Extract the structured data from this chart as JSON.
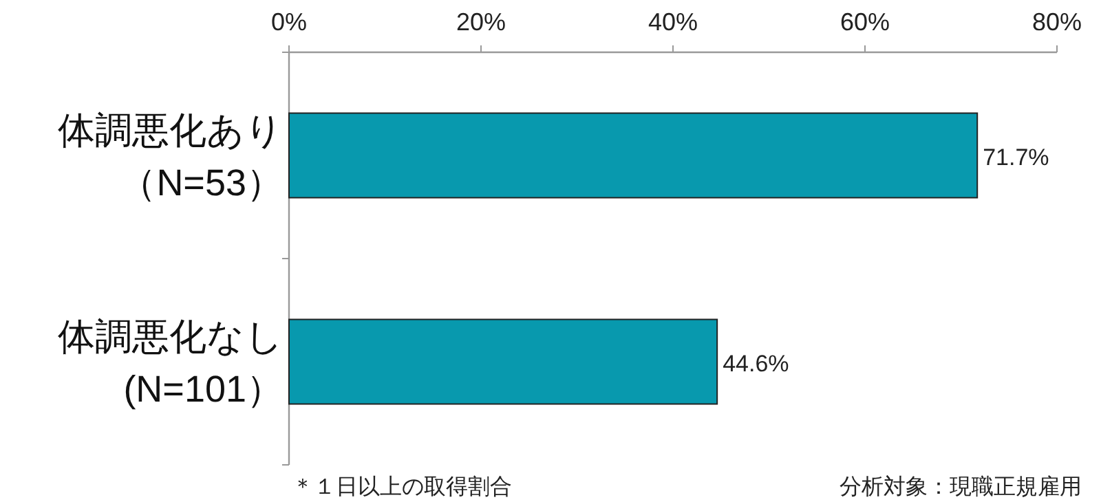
{
  "chart_data": {
    "type": "bar",
    "orientation": "horizontal",
    "categories": [
      "体調悪化あり（N=53）",
      "体調悪化なし(N=101）"
    ],
    "values": [
      71.7,
      44.6
    ],
    "value_labels": [
      "71.7%",
      "44.6%"
    ],
    "color": "#0899ae",
    "xlim": [
      0,
      80
    ],
    "xticks": [
      {
        "value": 0,
        "label": "0%"
      },
      {
        "value": 20,
        "label": "20%"
      },
      {
        "value": 40,
        "label": "40%"
      },
      {
        "value": 60,
        "label": "60%"
      },
      {
        "value": 80,
        "label": "80%"
      }
    ],
    "annotations": [
      "＊１日以上の取得割合",
      "分析対象：現職正規雇用"
    ]
  }
}
